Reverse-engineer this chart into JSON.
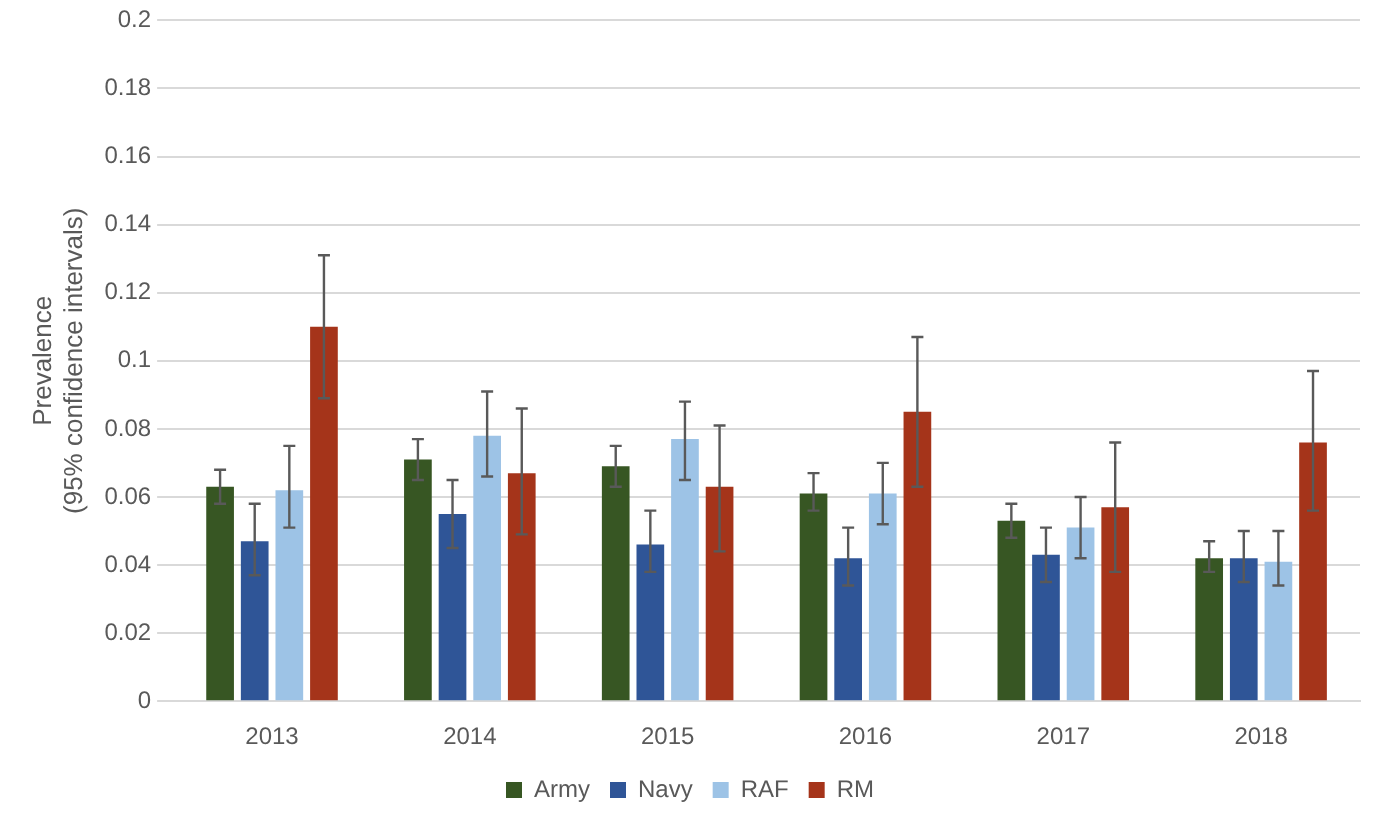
{
  "chart_data": {
    "type": "bar",
    "ylabel": "Prevalence\n(95% confidence intervals)",
    "categories": [
      "2013",
      "2014",
      "2015",
      "2016",
      "2017",
      "2018"
    ],
    "series": [
      {
        "name": "Army",
        "color": "#375623",
        "values": [
          0.063,
          0.071,
          0.069,
          0.061,
          0.053,
          0.042
        ],
        "errors": [
          [
            0.058,
            0.068
          ],
          [
            0.065,
            0.077
          ],
          [
            0.063,
            0.075
          ],
          [
            0.056,
            0.067
          ],
          [
            0.048,
            0.058
          ],
          [
            0.038,
            0.047
          ]
        ]
      },
      {
        "name": "Navy",
        "color": "#2f5597",
        "values": [
          0.047,
          0.055,
          0.046,
          0.042,
          0.043,
          0.042
        ],
        "errors": [
          [
            0.037,
            0.058
          ],
          [
            0.045,
            0.065
          ],
          [
            0.038,
            0.056
          ],
          [
            0.034,
            0.051
          ],
          [
            0.035,
            0.051
          ],
          [
            0.035,
            0.05
          ]
        ]
      },
      {
        "name": "RAF",
        "color": "#9dc3e6",
        "values": [
          0.062,
          0.078,
          0.077,
          0.061,
          0.051,
          0.041
        ],
        "errors": [
          [
            0.051,
            0.075
          ],
          [
            0.066,
            0.091
          ],
          [
            0.065,
            0.088
          ],
          [
            0.052,
            0.07
          ],
          [
            0.042,
            0.06
          ],
          [
            0.034,
            0.05
          ]
        ]
      },
      {
        "name": "RM",
        "color": "#a5341a",
        "values": [
          0.11,
          0.067,
          0.063,
          0.085,
          0.057,
          0.076
        ],
        "errors": [
          [
            0.089,
            0.131
          ],
          [
            0.049,
            0.086
          ],
          [
            0.044,
            0.081
          ],
          [
            0.063,
            0.107
          ],
          [
            0.038,
            0.076
          ],
          [
            0.056,
            0.097
          ]
        ]
      }
    ],
    "ylim": [
      0,
      0.2
    ],
    "yticks": [
      0,
      0.02,
      0.04,
      0.06,
      0.08,
      0.1,
      0.12,
      0.14,
      0.16,
      0.18,
      0.2
    ],
    "grid": "y",
    "legend": "bottom"
  }
}
